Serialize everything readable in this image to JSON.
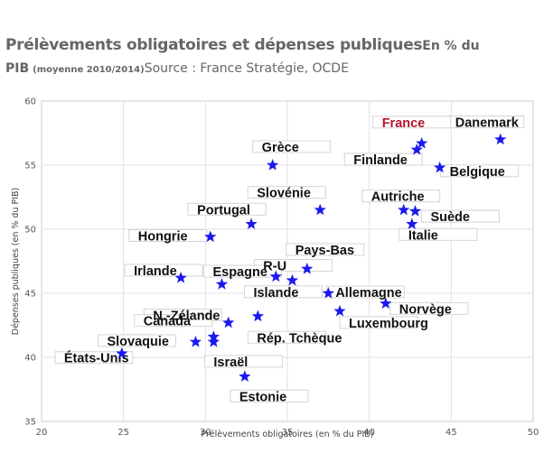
{
  "title": {
    "main": "Prélèvements obligatoires et dépenses publiques",
    "unit": "En % du PIB",
    "period": "(moyenne 2010/2014)",
    "source": "Source : France Stratégie, OCDE"
  },
  "chart_data": {
    "type": "scatter",
    "xlabel": "Prélèvements obligatoires (en % du PIB)",
    "ylabel": "Dépenses publiques (en % du PIB)",
    "xlim": [
      20,
      50
    ],
    "ylim": [
      35,
      60
    ],
    "xticks": [
      20,
      25,
      30,
      35,
      40,
      45,
      50
    ],
    "yticks": [
      35,
      40,
      45,
      50,
      55,
      60
    ],
    "grid": true,
    "marker": "star",
    "marker_color": "#1a1aee",
    "highlight_color": "#b5162b",
    "points": [
      {
        "label": "Danemark",
        "x": 48.0,
        "y": 57.0
      },
      {
        "label": "France",
        "x": 43.2,
        "y": 56.7,
        "highlight": true
      },
      {
        "label": "Finlande",
        "x": 42.9,
        "y": 56.2
      },
      {
        "label": "Belgique",
        "x": 44.3,
        "y": 54.8
      },
      {
        "label": "Grèce",
        "x": 34.1,
        "y": 55.0
      },
      {
        "label": "Slovénie",
        "x": 37.0,
        "y": 51.5
      },
      {
        "label": "Autriche",
        "x": 42.1,
        "y": 51.5
      },
      {
        "label": "Suède",
        "x": 42.8,
        "y": 51.4
      },
      {
        "label": "Italie",
        "x": 42.6,
        "y": 50.4
      },
      {
        "label": "Portugal",
        "x": 32.8,
        "y": 50.4
      },
      {
        "label": "Hongrie",
        "x": 30.3,
        "y": 49.4
      },
      {
        "label": "Pays-Bas",
        "x": 36.2,
        "y": 46.9
      },
      {
        "label": "Irlande",
        "x": 28.5,
        "y": 46.2
      },
      {
        "label": "R-U",
        "x": 34.3,
        "y": 46.3
      },
      {
        "label": "Islande",
        "x": 35.3,
        "y": 46.0
      },
      {
        "label": "Espagne",
        "x": 31.0,
        "y": 45.7
      },
      {
        "label": "Allemagne",
        "x": 37.5,
        "y": 45.0
      },
      {
        "label": "Norvège",
        "x": 41.0,
        "y": 44.2
      },
      {
        "label": "Luxembourg",
        "x": 38.2,
        "y": 43.6
      },
      {
        "label": "N.-Zélande",
        "x": 33.2,
        "y": 43.2
      },
      {
        "label": "Canada",
        "x": 31.4,
        "y": 42.7
      },
      {
        "label": "Rép. Tchèque",
        "x": 30.5,
        "y": 41.6
      },
      {
        "label": "Israël",
        "x": 30.5,
        "y": 41.2
      },
      {
        "label": "Slovaquie",
        "x": 29.4,
        "y": 41.2
      },
      {
        "label": "États-Unis",
        "x": 24.9,
        "y": 40.3
      },
      {
        "label": "Estonie",
        "x": 32.4,
        "y": 38.5
      }
    ]
  }
}
